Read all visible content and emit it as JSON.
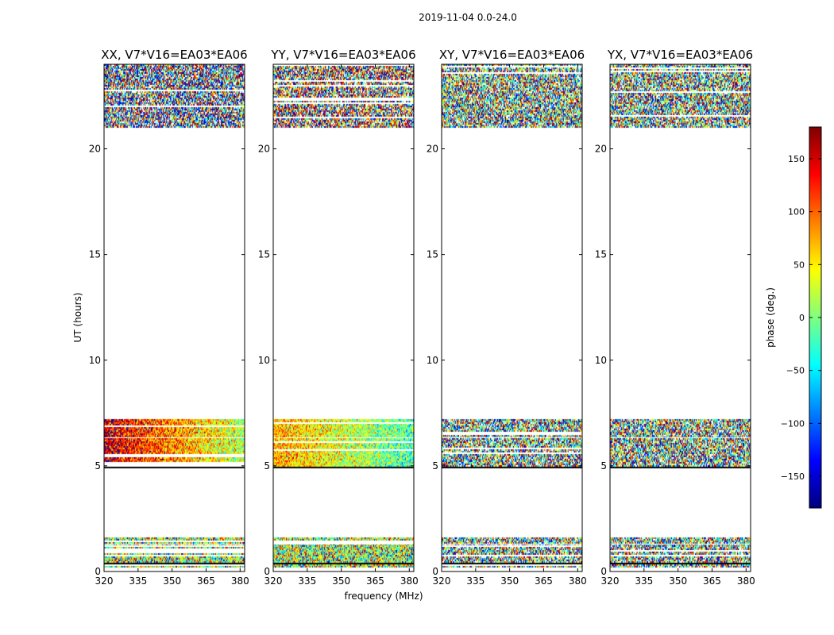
{
  "figure": {
    "suptitle": "2019-11-04 0.0-24.0",
    "xlabel": "frequency (MHz)",
    "ylabel": "UT (hours)"
  },
  "colorbar": {
    "label": "phase (deg.)",
    "range": [
      -180,
      180
    ],
    "ticks": [
      150,
      100,
      50,
      0,
      -50,
      -100,
      -150
    ],
    "tick_labels": [
      "150",
      "100",
      "50",
      "0",
      "−50",
      "−100",
      "−150"
    ],
    "colormap": "jet",
    "colors": [
      "#00007f",
      "#0000ff",
      "#007fff",
      "#00ffff",
      "#7fff7f",
      "#ffff00",
      "#ff7f00",
      "#ff0000",
      "#7f0000"
    ]
  },
  "chart_data": {
    "type": "heatmap",
    "value_range": [
      -180,
      180
    ],
    "xlim": [
      320,
      382
    ],
    "ylim": [
      0,
      24
    ],
    "xticks": [
      320,
      335,
      350,
      365,
      380
    ],
    "yticks": [
      0,
      5,
      10,
      15,
      20
    ],
    "xtick_labels": [
      "320",
      "335",
      "350",
      "365",
      "380"
    ],
    "ytick_labels": [
      "0",
      "5",
      "10",
      "15",
      "20"
    ],
    "panels": [
      {
        "title": "XX, V7*V16=EA03*EA06",
        "data_blocks": [
          {
            "ut_range": [
              0.2,
              1.6
            ],
            "mean_phase": 20,
            "spread": 110
          },
          {
            "ut_range": [
              5.0,
              7.2
            ],
            "mean_phase_at_320": 150,
            "mean_phase_at_382": 20,
            "spread": 60
          },
          {
            "ut_range": [
              21.0,
              24.0
            ],
            "mean_phase": -140,
            "spread": 160
          }
        ]
      },
      {
        "title": "YY, V7*V16=EA03*EA06",
        "data_blocks": [
          {
            "ut_range": [
              0.2,
              1.6
            ],
            "mean_phase": 20,
            "spread": 110
          },
          {
            "ut_range": [
              5.0,
              7.2
            ],
            "mean_phase_at_320": 80,
            "mean_phase_at_382": -20,
            "spread": 55
          },
          {
            "ut_range": [
              21.0,
              24.0
            ],
            "mean_phase": 140,
            "spread": 160
          }
        ]
      },
      {
        "title": "XY, V7*V16=EA03*EA06",
        "data_blocks": [
          {
            "ut_range": [
              0.2,
              1.6
            ],
            "mean_phase": 0,
            "spread": 170
          },
          {
            "ut_range": [
              5.0,
              7.2
            ],
            "mean_phase": 0,
            "spread": 170
          },
          {
            "ut_range": [
              21.0,
              24.0
            ],
            "mean_phase": 0,
            "spread": 170
          }
        ]
      },
      {
        "title": "YX, V7*V16=EA03*EA06",
        "data_blocks": [
          {
            "ut_range": [
              0.2,
              1.6
            ],
            "mean_phase": 0,
            "spread": 170
          },
          {
            "ut_range": [
              5.0,
              7.2
            ],
            "mean_phase": 0,
            "spread": 170
          },
          {
            "ut_range": [
              21.0,
              24.0
            ],
            "mean_phase": 0,
            "spread": 170
          }
        ]
      }
    ]
  }
}
